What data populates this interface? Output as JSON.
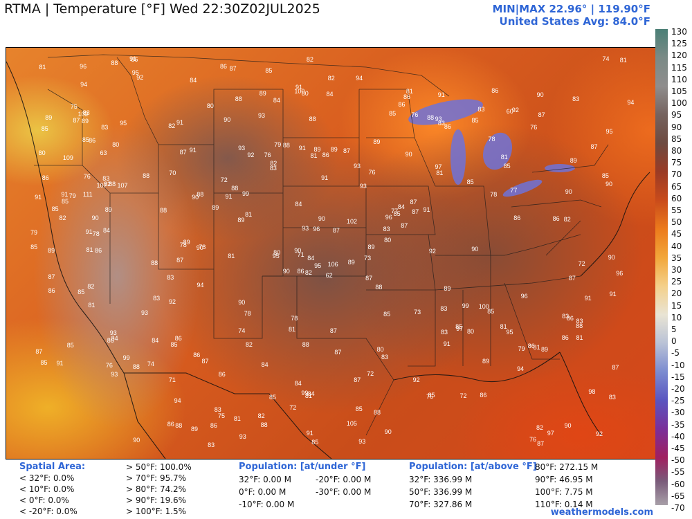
{
  "header": {
    "title": "RTMA | Temperature [°F]  Wed 22:30Z02JUL2025",
    "minmax": "MIN|MAX 22.96° | 119.90°F",
    "avg": "United States Avg: 84.0°F"
  },
  "colorbar": {
    "ticks": [
      "130",
      "125",
      "120",
      "115",
      "110",
      "105",
      "100",
      "95",
      "90",
      "85",
      "80",
      "75",
      "70",
      "65",
      "60",
      "55",
      "50",
      "45",
      "40",
      "35",
      "30",
      "25",
      "20",
      "15",
      "10",
      "5",
      "0",
      "-5",
      "-10",
      "-15",
      "-20",
      "-25",
      "-30",
      "-35",
      "-40",
      "-45",
      "-50",
      "-55",
      "-60",
      "-65",
      "-70"
    ]
  },
  "legend": {
    "spatial": {
      "header": "Spatial Area:",
      "col1": [
        "< 32°F: 0.0%",
        "< 10°F: 0.0%",
        "< 0°F: 0.0%",
        "< -20°F: 0.0%"
      ],
      "col2": [
        "> 50°F: 100.0%",
        "> 70°F: 95.7%",
        "> 80°F: 74.2%",
        "> 90°F: 19.6%",
        "> 100°F: 1.5%"
      ]
    },
    "pop_under": {
      "header": "Population: [at/under °F]",
      "col1": [
        "32°F: 0.00 M",
        "0°F: 0.00 M",
        "-10°F: 0.00 M"
      ],
      "col2": [
        "-20°F: 0.00 M",
        "-30°F: 0.00 M"
      ]
    },
    "pop_above": {
      "header": "Population: [at/above °F]",
      "col1": [
        "32°F: 336.99 M",
        "50°F: 336.99 M",
        "70°F: 327.86 M"
      ],
      "col2": [
        "80°F: 272.15 M",
        "90°F: 46.95 M",
        "100°F: 7.75 M",
        "110°F: 0.14 M"
      ]
    }
  },
  "credit": "weathermodels.com",
  "map_labels": [
    "62",
    "63",
    "71",
    "96",
    "87",
    "89",
    "93",
    "89",
    "92",
    "92",
    "84",
    "95",
    "90",
    "97",
    "90",
    "91",
    "93",
    "99",
    "99",
    "94",
    "89",
    "85",
    "85",
    "80",
    "80",
    "82",
    "83",
    "90",
    "90",
    "84",
    "93",
    "91",
    "83",
    "86",
    "97",
    "98",
    "100",
    "91",
    "88",
    "91",
    "89",
    "91",
    "83",
    "81",
    "80",
    "76",
    "89",
    "89",
    "97",
    "85",
    "71",
    "95",
    "96",
    "87",
    "87",
    "82",
    "78",
    "79",
    "70",
    "60",
    "91",
    "81",
    "84",
    "90",
    "87",
    "88",
    "81",
    "99",
    "90",
    "94",
    "88",
    "86",
    "84",
    "85",
    "102",
    "92",
    "83",
    "91",
    "82",
    "87",
    "93",
    "92",
    "91",
    "96",
    "91",
    "89",
    "87",
    "86",
    "85",
    "85",
    "88",
    "83",
    "88",
    "86",
    "90",
    "85",
    "93",
    "85",
    "83",
    "77",
    "76",
    "89",
    "87",
    "89",
    "86",
    "95",
    "87",
    "85",
    "82",
    "83",
    "79",
    "85",
    "86",
    "93",
    "93",
    "90",
    "92",
    "90",
    "88",
    "86",
    "85",
    "84",
    "90",
    "88",
    "90",
    "91",
    "95",
    "94",
    "93",
    "91",
    "88",
    "87",
    "89",
    "86",
    "89",
    "84",
    "83",
    "82",
    "99",
    "100",
    "90",
    "87",
    "91",
    "93",
    "96",
    "94",
    "88",
    "91",
    "87",
    "89",
    "85",
    "84",
    "85",
    "82",
    "86",
    "76",
    "78",
    "83",
    "86",
    "87",
    "89",
    "88",
    "86",
    "87",
    "86",
    "85",
    "83",
    "80",
    "82",
    "109",
    "106",
    "105",
    "111",
    "102",
    "107",
    "107",
    "90",
    "86",
    "84",
    "86",
    "82",
    "81",
    "81",
    "87",
    "84",
    "86",
    "88",
    "81",
    "84",
    "78",
    "83",
    "79",
    "85",
    "89",
    "86",
    "85",
    "81",
    "86",
    "87",
    "87",
    "89",
    "88",
    "86",
    "84",
    "88",
    "88",
    "90",
    "91",
    "89",
    "87",
    "90",
    "88",
    "86",
    "87",
    "90",
    "88",
    "86",
    "85",
    "83",
    "81",
    "83",
    "86",
    "89",
    "81",
    "87",
    "85",
    "85",
    "83",
    "88",
    "87",
    "83",
    "82",
    "81",
    "77",
    "76",
    "75",
    "74",
    "72",
    "76",
    "78",
    "74",
    "72",
    "76",
    "79",
    "81",
    "89",
    "91",
    "94",
    "96",
    "93",
    "92",
    "91",
    "95",
    "90",
    "88",
    "86",
    "87",
    "82",
    "81",
    "85",
    "82",
    "80",
    "76",
    "72",
    "78",
    "75",
    "73",
    "74",
    "72",
    "78",
    "80",
    "81",
    "85",
    "80",
    "81",
    "81",
    "84",
    "85",
    "86",
    "92",
    "94",
    "95",
    "91",
    "85",
    "93",
    "83",
    "83",
    "72",
    "73",
    "78",
    "80",
    "83",
    "82",
    "86",
    "81",
    "76"
  ]
}
